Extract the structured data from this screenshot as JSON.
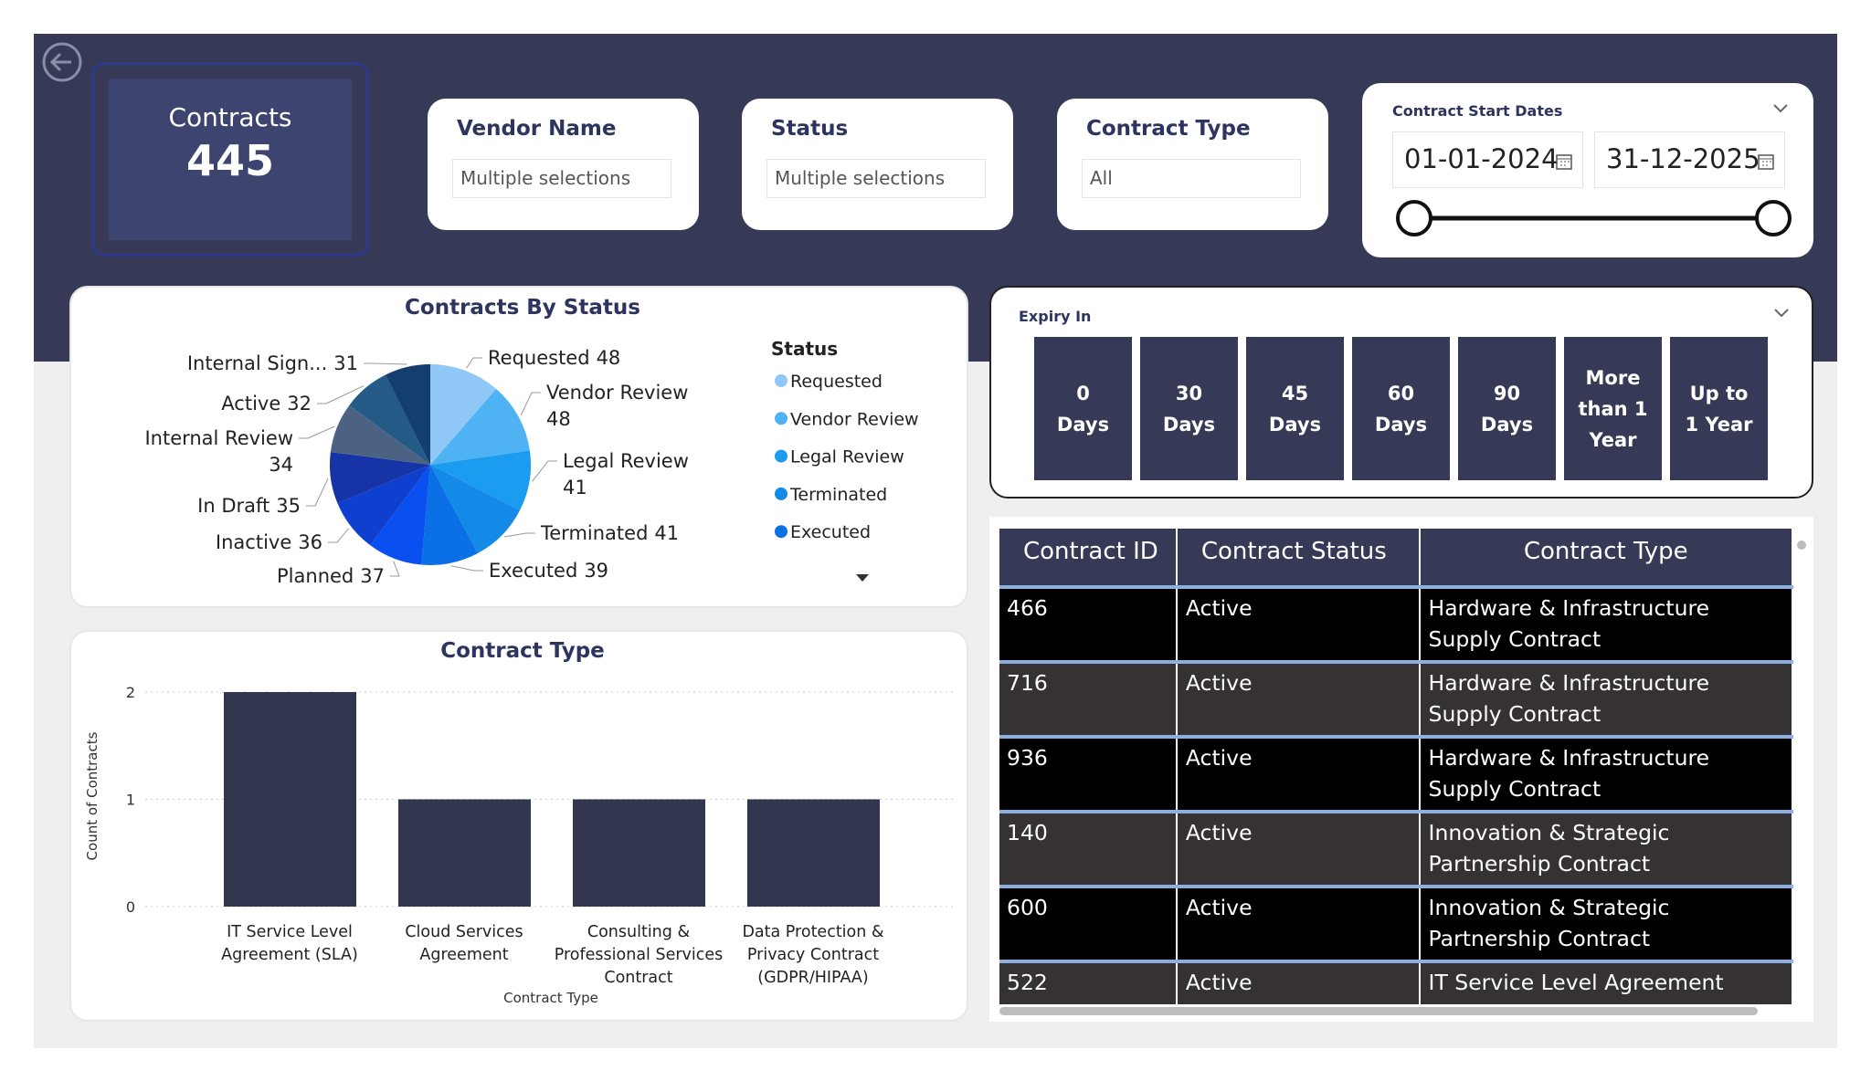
{
  "kpi": {
    "label": "Contracts",
    "value": 445
  },
  "filters": [
    {
      "title": "Vendor Name",
      "value": "Multiple selections"
    },
    {
      "title": "Status",
      "value": "Multiple selections"
    },
    {
      "title": "Contract Type",
      "value": "All"
    }
  ],
  "date_filter": {
    "title": "Contract Start Dates",
    "start": "01-01-2024",
    "end": "31-12-2025"
  },
  "expiry": {
    "title": "Expiry In",
    "options": [
      "0 Days",
      "30 Days",
      "45 Days",
      "60 Days",
      "90 Days",
      "More than 1 Year",
      "Up to 1 Year"
    ]
  },
  "pie_chart": {
    "type": "pie",
    "title": "Contracts By Status",
    "legend_title": "Status",
    "categories": [
      "Requested",
      "Vendor Review",
      "Legal Review",
      "Terminated",
      "Executed",
      "Planned",
      "Inactive",
      "In Draft",
      "Internal Review",
      "Active",
      "Internal Sign..."
    ],
    "values": [
      48,
      48,
      41,
      41,
      39,
      37,
      36,
      35,
      34,
      32,
      31
    ],
    "colors": [
      "#8fc8f6",
      "#4fb2f2",
      "#1b9cf0",
      "#148ae8",
      "#0b6fe6",
      "#0a4ff0",
      "#0f3fcf",
      "#1634a6",
      "#4b6283",
      "#245a86",
      "#133e6e"
    ]
  },
  "bar_chart": {
    "type": "bar",
    "title": "Contract Type",
    "x_label": "Contract Type",
    "y_label": "Count of Contracts",
    "categories": [
      "IT Service Level Agreement (SLA)",
      "Cloud Services Agreement",
      "Consulting & Professional Services Contract",
      "Data Protection & Privacy Contract (GDPR/HIPAA)"
    ],
    "values": [
      2,
      1,
      1,
      1
    ],
    "color": "#32374f",
    "ylim": [
      0,
      2
    ],
    "yticks": [
      0,
      1,
      2
    ],
    "grid": true
  },
  "table": {
    "columns": [
      "Contract ID",
      "Contract Status",
      "Contract Type"
    ],
    "rows": [
      [
        466,
        "Active",
        "Hardware & Infrastructure Supply Contract"
      ],
      [
        716,
        "Active",
        "Hardware & Infrastructure Supply Contract"
      ],
      [
        936,
        "Active",
        "Hardware & Infrastructure Supply Contract"
      ],
      [
        140,
        "Active",
        "Innovation & Strategic Partnership Contract"
      ],
      [
        600,
        "Active",
        "Innovation & Strategic Partnership Contract"
      ],
      [
        522,
        "Active",
        "IT Service Level Agreement (SLA)"
      ]
    ]
  }
}
